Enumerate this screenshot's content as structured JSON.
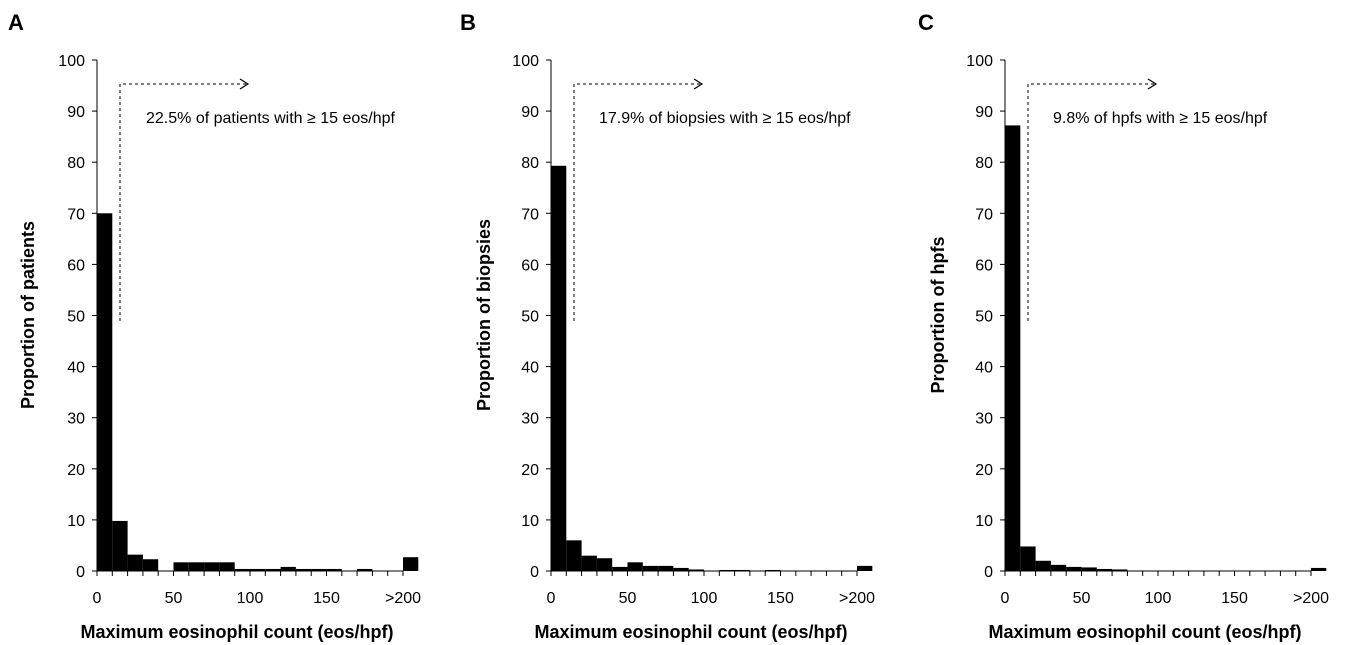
{
  "chart_data": [
    {
      "panel_label": "A",
      "type": "bar",
      "title": "",
      "xlabel": "Maximum eosinophil count (eos/hpf)",
      "ylabel": "Proportion of patients",
      "ylim": [
        0,
        100
      ],
      "yticks": [
        0,
        10,
        20,
        30,
        40,
        50,
        60,
        70,
        80,
        90,
        100
      ],
      "xticks": [
        "0",
        "50",
        "100",
        "150",
        ">200"
      ],
      "bin_width": 10,
      "x": [
        0,
        10,
        20,
        30,
        40,
        50,
        60,
        70,
        80,
        90,
        100,
        110,
        120,
        130,
        140,
        150,
        160,
        170,
        180,
        190,
        200
      ],
      "values": [
        70.0,
        9.8,
        3.2,
        2.3,
        0,
        1.7,
        1.7,
        1.7,
        1.7,
        0.4,
        0.4,
        0.4,
        0.8,
        0.4,
        0.4,
        0.4,
        0,
        0.4,
        0,
        0,
        2.7
      ],
      "annotation": "22.5% of patients with ≥ 15 eos/hpf",
      "threshold": 15,
      "bar_color": "#000000",
      "grid": false
    },
    {
      "panel_label": "B",
      "type": "bar",
      "title": "",
      "xlabel": "Maximum eosinophil count (eos/hpf)",
      "ylabel": "Proportion of biopsies",
      "ylim": [
        0,
        100
      ],
      "yticks": [
        0,
        10,
        20,
        30,
        40,
        50,
        60,
        70,
        80,
        90,
        100
      ],
      "xticks": [
        "0",
        "50",
        "100",
        "150",
        ">200"
      ],
      "bin_width": 10,
      "x": [
        0,
        10,
        20,
        30,
        40,
        50,
        60,
        70,
        80,
        90,
        100,
        110,
        120,
        130,
        140,
        150,
        160,
        170,
        180,
        190,
        200
      ],
      "values": [
        79.3,
        6.0,
        3.0,
        2.5,
        0.8,
        1.7,
        1.0,
        1.0,
        0.6,
        0.3,
        0,
        0.2,
        0.2,
        0,
        0.2,
        0,
        0,
        0,
        0,
        0,
        1.0
      ],
      "annotation": "17.9% of biopsies with ≥ 15 eos/hpf",
      "threshold": 15,
      "bar_color": "#000000",
      "grid": false
    },
    {
      "panel_label": "C",
      "type": "bar",
      "title": "",
      "xlabel": "Maximum eosinophil count (eos/hpf)",
      "ylabel": "Proportion of hpfs",
      "ylim": [
        0,
        100
      ],
      "yticks": [
        0,
        10,
        20,
        30,
        40,
        50,
        60,
        70,
        80,
        90,
        100
      ],
      "xticks": [
        "0",
        "50",
        "100",
        "150",
        ">200"
      ],
      "bin_width": 10,
      "x": [
        0,
        10,
        20,
        30,
        40,
        50,
        60,
        70,
        80,
        90,
        100,
        110,
        120,
        130,
        140,
        150,
        160,
        170,
        180,
        190,
        200
      ],
      "values": [
        87.2,
        4.8,
        2.0,
        1.2,
        0.8,
        0.7,
        0.4,
        0.3,
        0,
        0,
        0,
        0,
        0,
        0,
        0,
        0,
        0,
        0,
        0,
        0,
        0.6
      ],
      "annotation": "9.8% of hpfs with ≥ 15 eos/hpf",
      "threshold": 15,
      "bar_color": "#000000",
      "grid": false
    }
  ]
}
